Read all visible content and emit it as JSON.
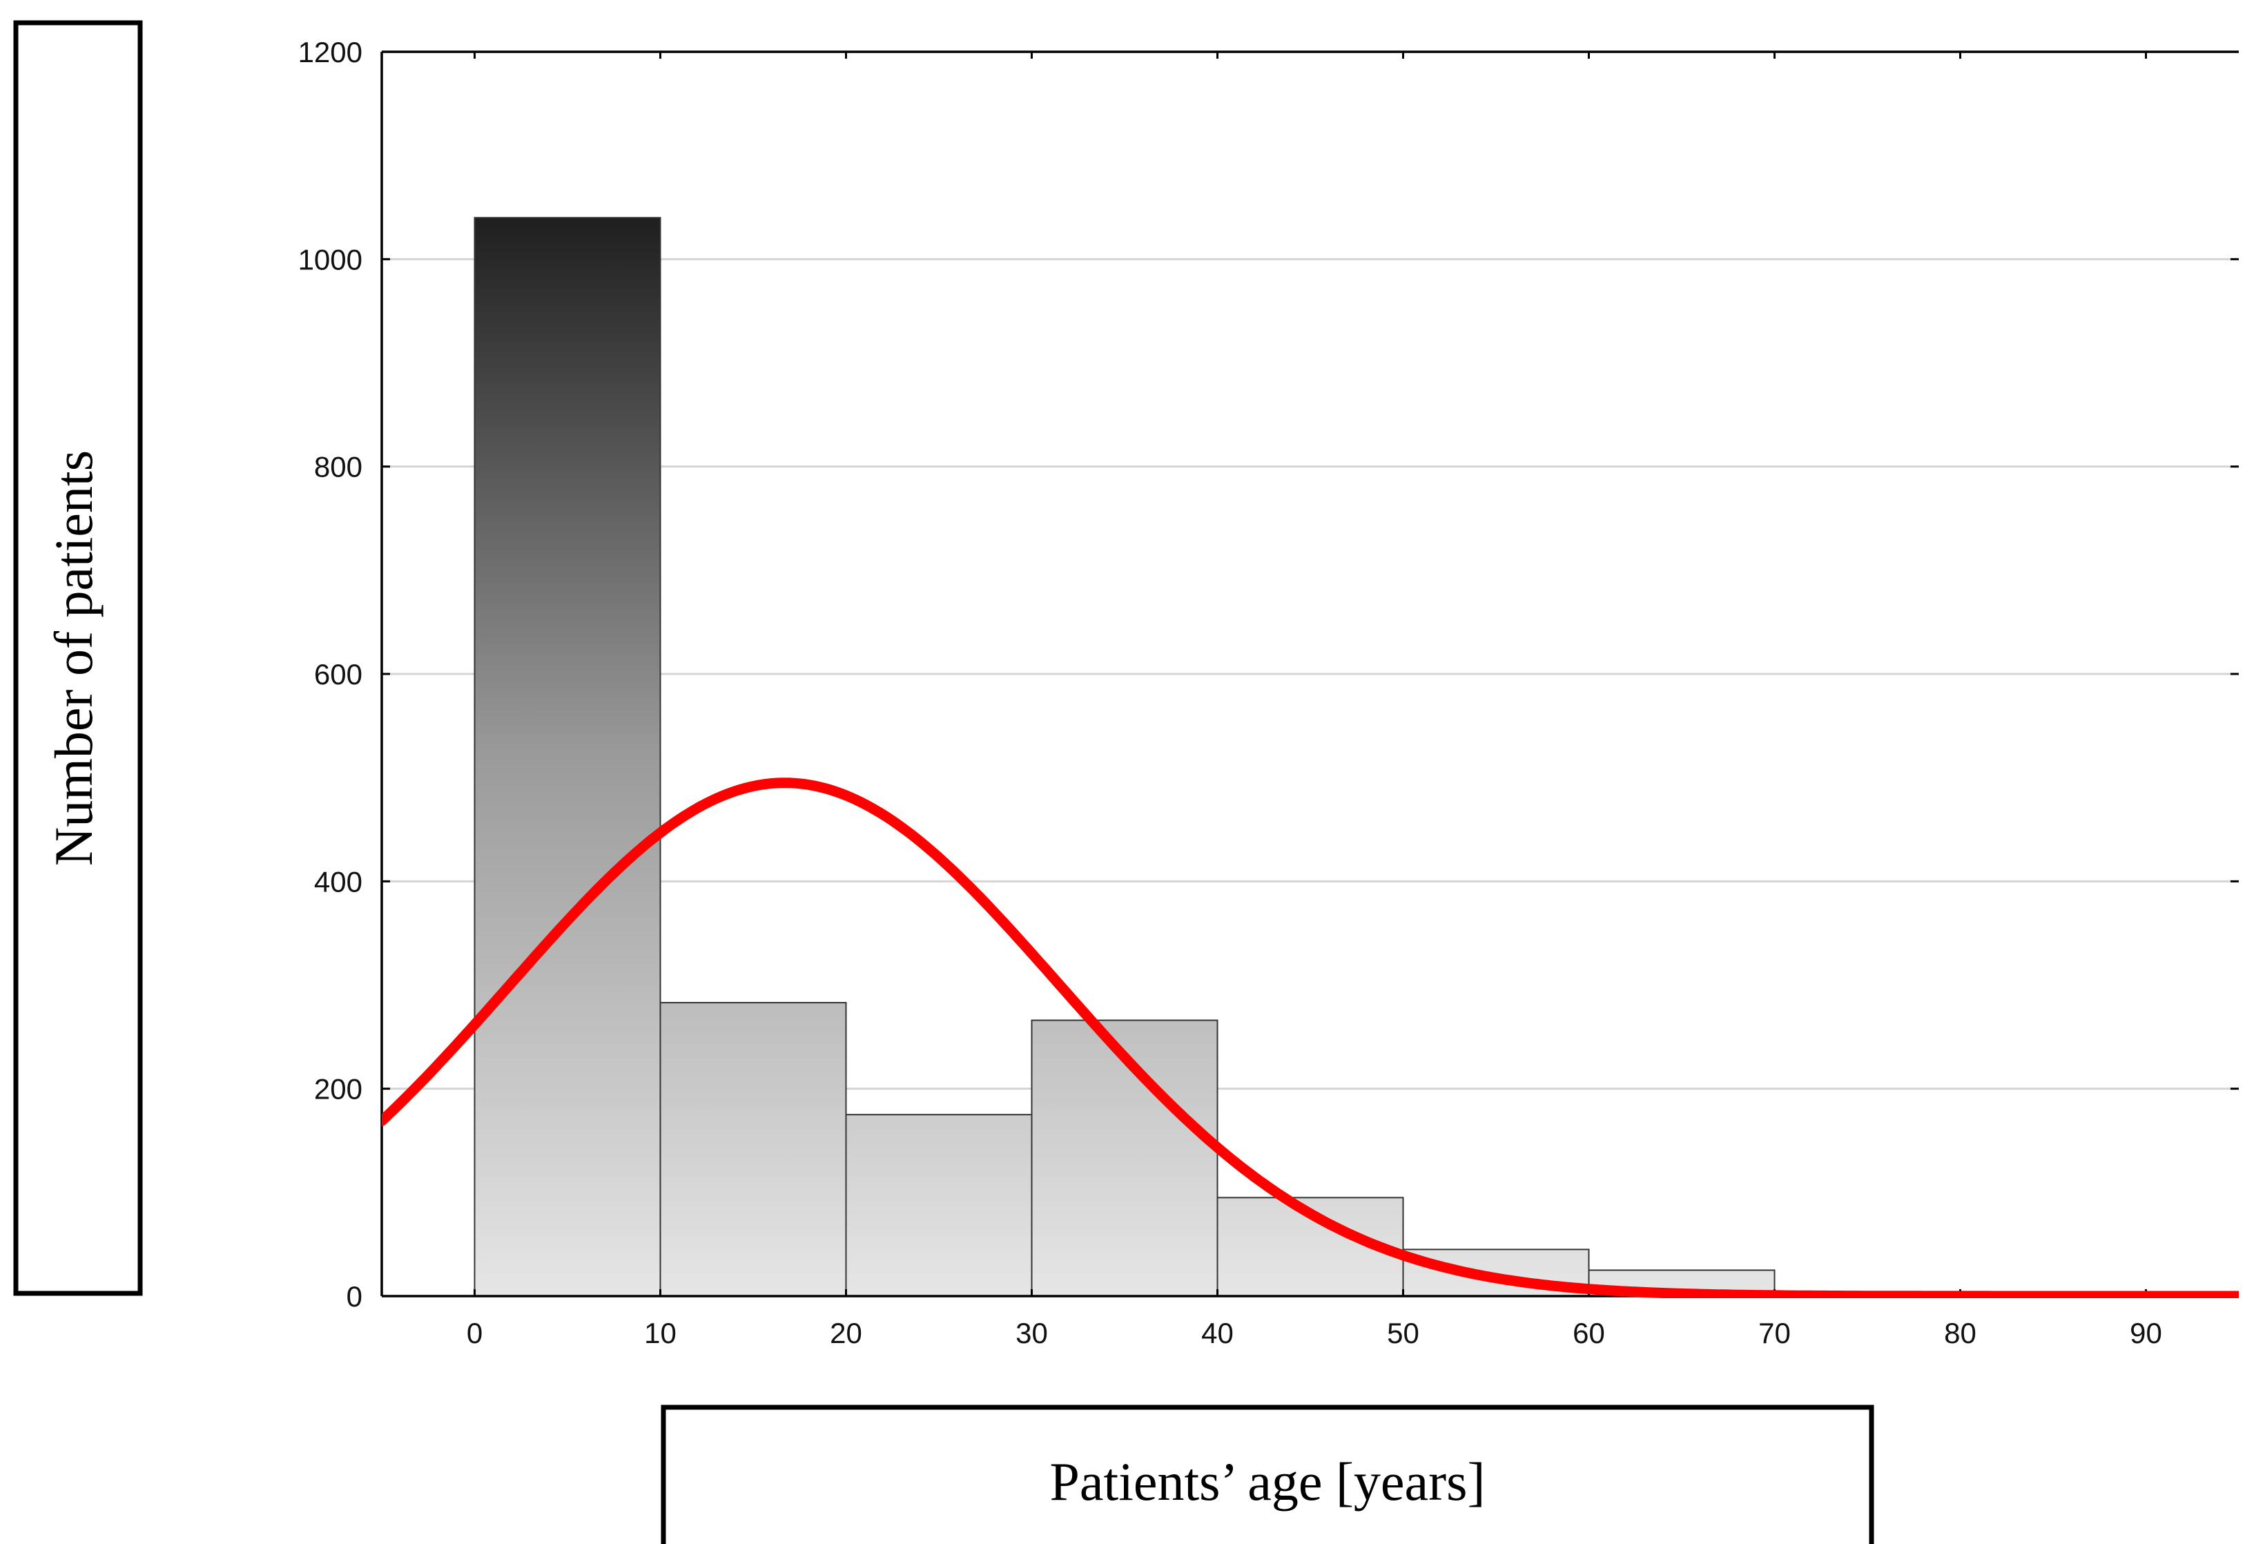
{
  "chart_data": {
    "type": "bar",
    "title": "",
    "xlabel": "Patients’ age [years]",
    "ylabel": "Number of patients",
    "xlim": [
      -5,
      95
    ],
    "ylim": [
      0,
      1200
    ],
    "grid": true,
    "x_ticks": [
      "0",
      "10",
      "20",
      "30",
      "40",
      "50",
      "60",
      "70",
      "80",
      "90"
    ],
    "y_ticks": [
      "0",
      "200",
      "400",
      "600",
      "800",
      "1000",
      "1200"
    ],
    "y_tick_values": [
      0,
      200,
      400,
      600,
      800,
      1000,
      1200
    ],
    "x_tick_values": [
      0,
      10,
      20,
      30,
      40,
      50,
      60,
      70,
      80,
      90
    ],
    "bins": [
      {
        "start": 0,
        "end": 10,
        "value": 1040
      },
      {
        "start": 10,
        "end": 20,
        "value": 283
      },
      {
        "start": 20,
        "end": 30,
        "value": 175
      },
      {
        "start": 30,
        "end": 40,
        "value": 266
      },
      {
        "start": 40,
        "end": 50,
        "value": 95
      },
      {
        "start": 50,
        "end": 60,
        "value": 45
      },
      {
        "start": 60,
        "end": 70,
        "value": 25
      }
    ],
    "fit_curve": {
      "type": "normal",
      "peak_x": 16.7,
      "peak_y": 495,
      "sigma": 14.8,
      "color": "#ff0000"
    }
  }
}
